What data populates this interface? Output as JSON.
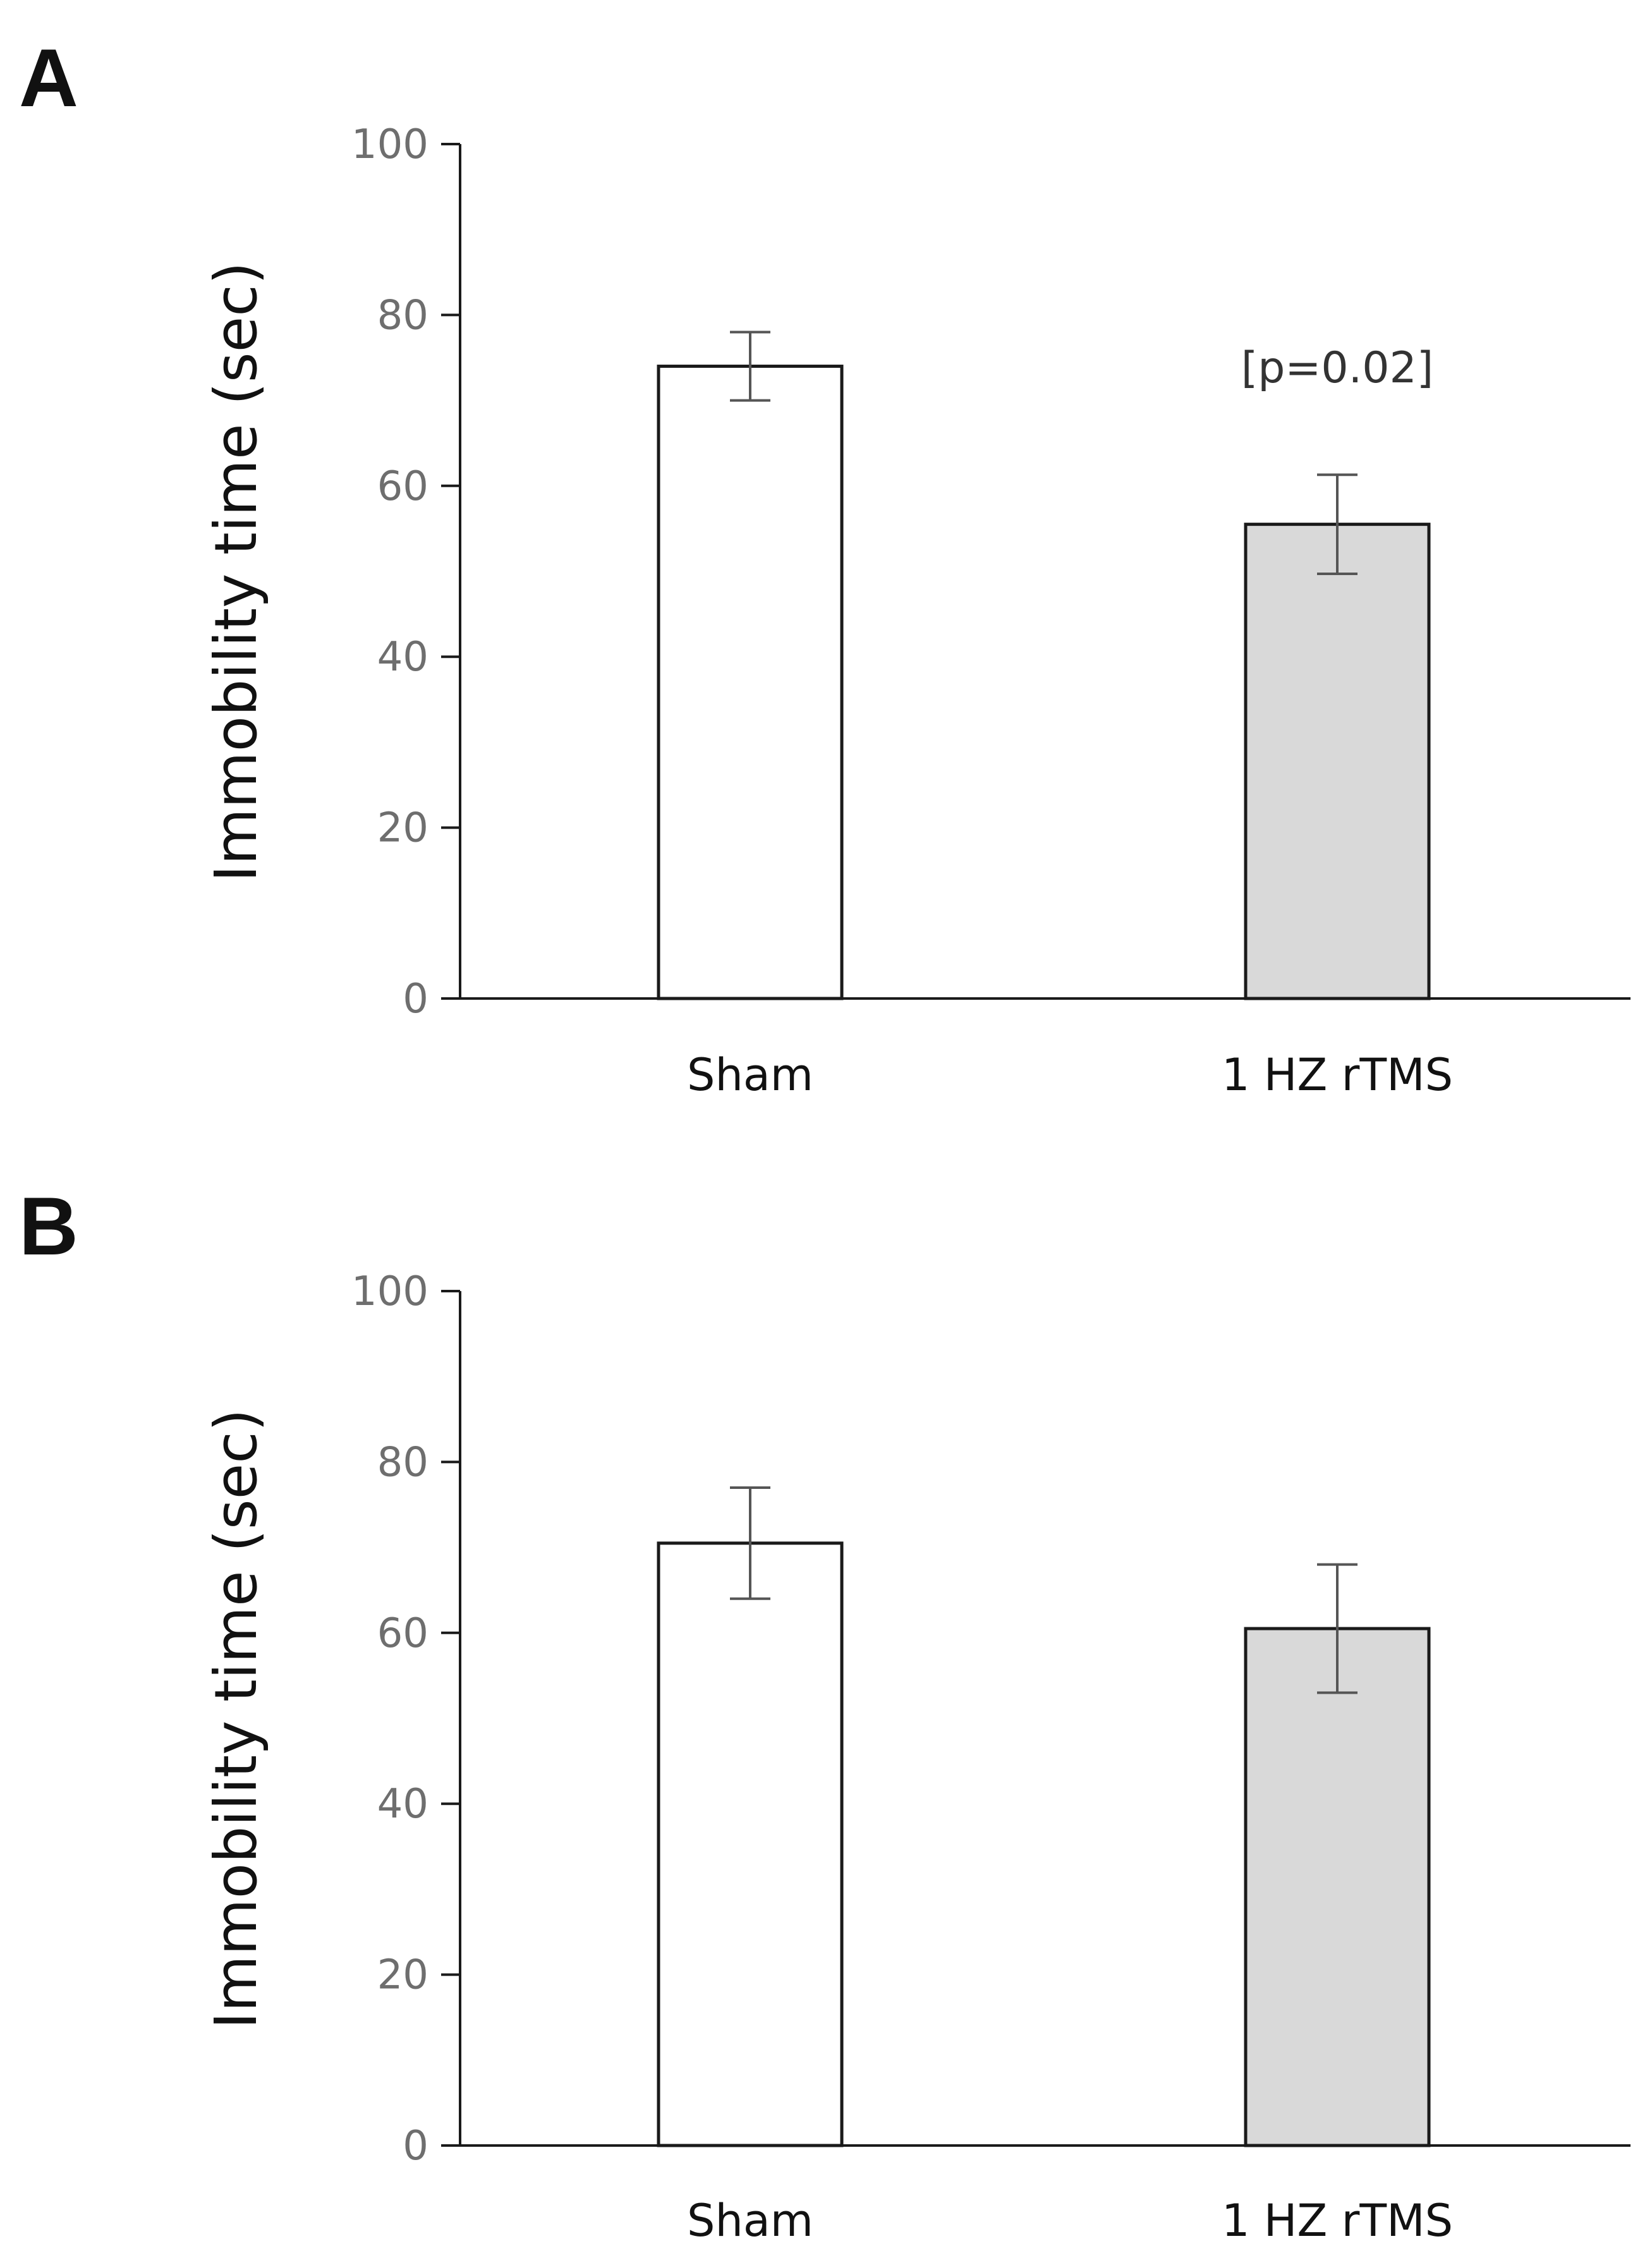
{
  "chart_data": [
    {
      "type": "bar",
      "panel": "A",
      "categories": [
        "Sham",
        "1 HZ rTMS"
      ],
      "values": [
        74,
        55.5
      ],
      "errors": [
        4,
        5.8
      ],
      "ylabel": "Immobility time (sec)",
      "ylim": [
        0,
        100
      ],
      "yticks": [
        "0",
        "20",
        "40",
        "60",
        "80",
        "100"
      ],
      "ytick_values": [
        0,
        20,
        40,
        60,
        80,
        100
      ],
      "annotation": "[p=0.02]",
      "colors": [
        "#ffffff",
        "#d9d9d9"
      ]
    },
    {
      "type": "bar",
      "panel": "B",
      "categories": [
        "Sham",
        "1 HZ rTMS"
      ],
      "values": [
        70.5,
        60.5
      ],
      "errors": [
        6.5,
        7.5
      ],
      "ylabel": "Immobility time (sec)",
      "ylim": [
        0,
        100
      ],
      "yticks": [
        "0",
        "20",
        "40",
        "60",
        "80",
        "100"
      ],
      "ytick_values": [
        0,
        20,
        40,
        60,
        80,
        100
      ],
      "annotation": "",
      "colors": [
        "#ffffff",
        "#d9d9d9"
      ]
    }
  ]
}
